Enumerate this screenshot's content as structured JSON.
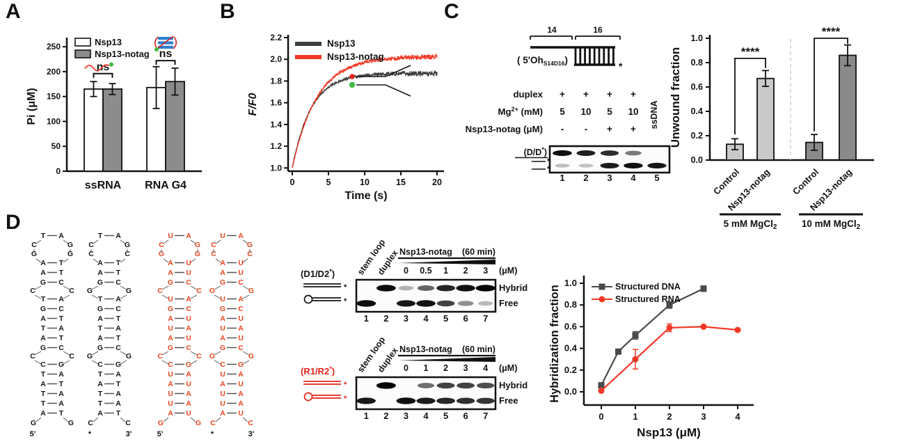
{
  "panel_labels": {
    "a": "A",
    "b": "B",
    "c": "C",
    "d": "D"
  },
  "colors": {
    "red": "#ee3425",
    "dark_gray": "#3d3d3d",
    "bar_gray": "#8c8c8c",
    "bar_light": "#c9c9c9",
    "bar_dark": "#8a8a8a",
    "green": "#3db93d",
    "blue": "#2e7fd0",
    "rna_orange": "#e8441f"
  },
  "chart_data": [
    {
      "id": "A",
      "type": "bar",
      "ylabel": "Pi (μM)",
      "ylim": [
        0,
        260
      ],
      "yticks": [
        "0",
        "50",
        "100",
        "150",
        "200",
        "250"
      ],
      "categories": [
        "ssRNA",
        "RNA G4"
      ],
      "series": [
        {
          "name": "Nsp13",
          "fill": "#ffffff",
          "values": [
            165,
            168
          ],
          "errors": [
            15,
            42
          ]
        },
        {
          "name": "Nsp13-notag",
          "fill": "#8c8c8c",
          "values": [
            165,
            180
          ],
          "errors": [
            11,
            27
          ]
        }
      ],
      "annotations": [
        {
          "text": "ns",
          "group": 0
        },
        {
          "text": "ns",
          "group": 1
        }
      ],
      "icons": [
        "ssrna-icon",
        "rna-g4-icon"
      ],
      "legend_position": "top-left"
    },
    {
      "id": "B",
      "type": "line",
      "xlabel": "Time (s)",
      "ylabel": "F/F0",
      "xlim": [
        0,
        20
      ],
      "ylim": [
        1.0,
        2.2
      ],
      "xticks": [
        "0",
        "5",
        "10",
        "15",
        "20"
      ],
      "yticks": [
        "1.0",
        "1.2",
        "1.4",
        "1.6",
        "1.8",
        "2.0",
        "2.2"
      ],
      "series": [
        {
          "name": "Nsp13",
          "color": "#3d3d3d",
          "start": 1.0,
          "plateau": 1.87,
          "tau": 2.6
        },
        {
          "name": "Nsp13-notag",
          "color": "#f23726",
          "start": 1.0,
          "plateau": 2.025,
          "tau": 3.4
        }
      ],
      "icon": "forked-duplex-substrate"
    },
    {
      "id": "C",
      "type": "bar",
      "ylabel": "Unwound fraction",
      "ylim": [
        0,
        1.0
      ],
      "yticks": [
        "0.0",
        "0.2",
        "0.4",
        "0.6",
        "0.8",
        "1.0"
      ],
      "groups": [
        {
          "label": "5 mM MgCl",
          "label_sub": "2",
          "bar_fill": "#c9c9c9",
          "sig": "****",
          "bars": [
            {
              "label": "Control",
              "value": 0.13,
              "error": 0.045
            },
            {
              "label": "Nsp13-notag",
              "value": 0.67,
              "error": 0.065
            }
          ]
        },
        {
          "label": "10 mM MgCl",
          "label_sub": "2",
          "bar_fill": "#8a8a8a",
          "sig": "****",
          "bars": [
            {
              "label": "Control",
              "value": 0.145,
              "error": 0.065
            },
            {
              "label": "Nsp13-notag",
              "value": 0.86,
              "error": 0.085
            }
          ]
        }
      ]
    },
    {
      "id": "D",
      "type": "line",
      "xlabel": "Nsp13 (μM)",
      "ylabel": "Hybridization fraction",
      "xlim": [
        0,
        4
      ],
      "ylim": [
        0,
        1.0
      ],
      "xticks": [
        "0",
        "1",
        "2",
        "3",
        "4"
      ],
      "yticks": [
        "0.0",
        "0.2",
        "0.4",
        "0.6",
        "0.8",
        "1.0"
      ],
      "series": [
        {
          "name": "Structured DNA",
          "color": "#4a4a4a",
          "marker": "square",
          "x": [
            0,
            0.5,
            1,
            2,
            3
          ],
          "y": [
            0.06,
            0.37,
            0.52,
            0.8,
            0.95
          ],
          "err": [
            0.01,
            0.012,
            0.035,
            0.03,
            0.025
          ]
        },
        {
          "name": "Structured RNA",
          "color": "#f23726",
          "marker": "circle",
          "x": [
            0,
            1,
            2,
            3,
            4
          ],
          "y": [
            0.01,
            0.3,
            0.59,
            0.6,
            0.57
          ],
          "err": [
            0.006,
            0.09,
            0.035,
            0.012,
            0.012
          ]
        }
      ],
      "legend_position": "top-left"
    }
  ],
  "panelC": {
    "schematic": {
      "len_ss": "14",
      "len_dup": "16",
      "name": [
        "( 5'Oh",
        "S14D16",
        ")"
      ],
      "star": "*"
    },
    "table": {
      "rows": [
        {
          "label": [
            "duplex",
            "",
            ""
          ],
          "values": [
            "+",
            "+",
            "+",
            "+"
          ]
        },
        {
          "label": [
            "Mg",
            "2+",
            " (mM)"
          ],
          "values": [
            "5",
            "10",
            "5",
            "10"
          ]
        },
        {
          "label": [
            "Nsp13-notag (μM)",
            "",
            ""
          ],
          "values": [
            "-",
            "-",
            "+",
            "+"
          ]
        }
      ],
      "extra_col": "ssDNA"
    },
    "gel": {
      "marker": [
        "(D/D",
        "*",
        ")"
      ],
      "side_stars": [
        "*",
        "*"
      ],
      "lanes": [
        "1",
        "2",
        "3",
        "4",
        "5"
      ],
      "top_band": [
        0.95,
        0.88,
        0.8,
        0.45,
        0
      ],
      "bottom_band": [
        0.12,
        0.1,
        0.9,
        0.95,
        0.92
      ]
    }
  },
  "panelD": {
    "structures": [
      {
        "id": "D1",
        "color": "#141414",
        "loop": {
          "top": [
            "T",
            "A"
          ],
          "ul": "C",
          "ur": "G",
          "ll": "G",
          "lr": "G",
          "close": [
            "A",
            "T"
          ]
        },
        "stem1": [
          [
            "A",
            "T"
          ]
        ],
        "bulge1": {
          "top": [
            "G",
            "C"
          ],
          "l": "C",
          "r": "C",
          "bot": [
            "T",
            "A"
          ]
        },
        "stem2": [
          [
            "G",
            "C"
          ],
          [
            "A",
            "T"
          ],
          [
            "T",
            "A"
          ],
          [
            "A",
            "T"
          ]
        ],
        "bulge2": {
          "top": [
            "G",
            "C"
          ],
          "l": "C",
          "r": "C",
          "bot": [
            "C",
            "G"
          ]
        },
        "stem3": [
          [
            "T",
            "A"
          ],
          [
            "A",
            "T"
          ],
          [
            "T",
            "A"
          ],
          [
            "T",
            "A"
          ]
        ],
        "close": [
          "A",
          "T"
        ],
        "ends": {
          "l": "G",
          "r": "G",
          "ll": "5'",
          "rl": ""
        }
      },
      {
        "id": "D2",
        "color": "#141414",
        "loop": {
          "top": [
            "T",
            "A"
          ],
          "ul": "C",
          "ur": "G",
          "ll": "C",
          "lr": "C",
          "close": [
            "A",
            "T"
          ]
        },
        "stem1": [
          [
            "A",
            "T"
          ]
        ],
        "bulge1": {
          "top": [
            "G",
            "C"
          ],
          "l": "G",
          "r": "G",
          "bot": [
            "T",
            "A"
          ]
        },
        "stem2": [
          [
            "G",
            "C"
          ],
          [
            "A",
            "T"
          ],
          [
            "T",
            "A"
          ],
          [
            "A",
            "T"
          ]
        ],
        "bulge2": {
          "top": [
            "G",
            "C"
          ],
          "l": "G",
          "r": "G",
          "bot": [
            "C",
            "G"
          ]
        },
        "stem3": [
          [
            "T",
            "A"
          ],
          [
            "A",
            "T"
          ],
          [
            "T",
            "A"
          ],
          [
            "T",
            "A"
          ]
        ],
        "close": [
          "A",
          "T"
        ],
        "ends": {
          "l": "C",
          "r": "C",
          "ll": "*",
          "rl": "3'"
        }
      },
      {
        "id": "R1",
        "color": "#e8441f",
        "loop": {
          "top": [
            "U",
            "A"
          ],
          "ul": "C",
          "ur": "G",
          "ll": "G",
          "lr": "G",
          "close": [
            "A",
            "U"
          ]
        },
        "stem1": [
          [
            "A",
            "U"
          ]
        ],
        "bulge1": {
          "top": [
            "G",
            "C"
          ],
          "l": "C",
          "r": "C",
          "bot": [
            "U",
            "A"
          ]
        },
        "stem2": [
          [
            "G",
            "C"
          ],
          [
            "A",
            "U"
          ],
          [
            "U",
            "A"
          ],
          [
            "A",
            "U"
          ]
        ],
        "bulge2": {
          "top": [
            "G",
            "C"
          ],
          "l": "C",
          "r": "C",
          "bot": [
            "C",
            "G"
          ]
        },
        "stem3": [
          [
            "U",
            "A"
          ],
          [
            "A",
            "U"
          ],
          [
            "U",
            "A"
          ],
          [
            "U",
            "A"
          ]
        ],
        "close": [
          "A",
          "U"
        ],
        "ends": {
          "l": "G",
          "r": "G",
          "ll": "5'",
          "rl": ""
        }
      },
      {
        "id": "R2",
        "color": "#e8441f",
        "loop": {
          "top": [
            "U",
            "A"
          ],
          "ul": "C",
          "ur": "G",
          "ll": "C",
          "lr": "C",
          "close": [
            "A",
            "U"
          ]
        },
        "stem1": [
          [
            "A",
            "U"
          ]
        ],
        "bulge1": {
          "top": [
            "G",
            "C"
          ],
          "l": "G",
          "r": "G",
          "bot": [
            "U",
            "A"
          ]
        },
        "stem2": [
          [
            "G",
            "C"
          ],
          [
            "A",
            "U"
          ],
          [
            "U",
            "A"
          ],
          [
            "A",
            "U"
          ]
        ],
        "bulge2": {
          "top": [
            "G",
            "C"
          ],
          "l": "G",
          "r": "G",
          "bot": [
            "C",
            "G"
          ]
        },
        "stem3": [
          [
            "U",
            "A"
          ],
          [
            "A",
            "U"
          ],
          [
            "U",
            "A"
          ],
          [
            "U",
            "A"
          ]
        ],
        "close": [
          "A",
          "U"
        ],
        "ends": {
          "l": "C",
          "r": "C",
          "ll": "*",
          "rl": "3'"
        }
      }
    ],
    "gels": [
      {
        "name": "dna",
        "color": "#121212",
        "label": [
          "(D1/D2",
          "*",
          ")"
        ],
        "col1": "stem loop",
        "col2": "duplex",
        "enzyme": "Nsp13-notag",
        "time": "(60 min)",
        "unit": "(μM)",
        "concs": [
          "0",
          "0.5",
          "1",
          "2",
          "3"
        ],
        "lanes": [
          "1",
          "2",
          "3",
          "4",
          "5",
          "6",
          "7"
        ],
        "row_labels": [
          "Hybrid",
          "Free"
        ],
        "hybrid": [
          0,
          0.97,
          0.18,
          0.55,
          0.85,
          0.95,
          1
        ],
        "free": [
          0.97,
          0,
          0.92,
          0.95,
          0.72,
          0.35,
          0.15
        ]
      },
      {
        "name": "rna",
        "color": "#e02317",
        "label": [
          "(R1/R2",
          "*",
          ")"
        ],
        "col1": "stem loop",
        "col2": "duplex",
        "enzyme": "Nsp13-notag",
        "time": "(60 min)",
        "unit": "(μM)",
        "concs": [
          "0",
          "1",
          "2",
          "3",
          "4"
        ],
        "lanes": [
          "1",
          "2",
          "3",
          "4",
          "5",
          "6",
          "7"
        ],
        "row_labels": [
          "Hybrid",
          "Free"
        ],
        "hybrid": [
          0,
          1,
          0,
          0.5,
          0.72,
          0.72,
          0.65
        ],
        "free": [
          0.92,
          0,
          0.97,
          0.9,
          0.85,
          0.8,
          0.78
        ]
      }
    ]
  }
}
